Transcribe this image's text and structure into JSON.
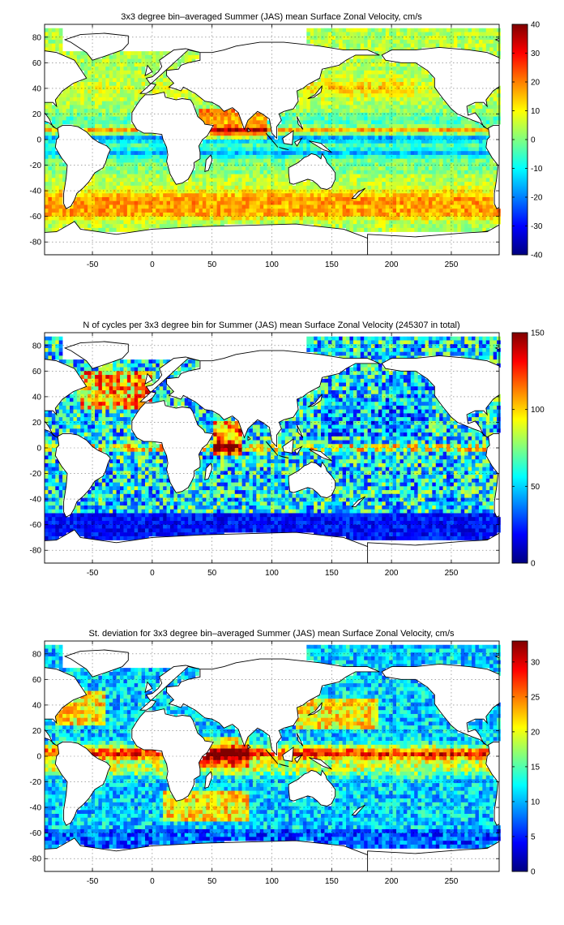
{
  "chart_data": [
    {
      "type": "heatmap",
      "title": "3x3 degree bin–averaged Summer (JAS) mean Surface Zonal Velocity, cm/s",
      "xlim": [
        -90,
        290
      ],
      "ylim": [
        -90,
        90
      ],
      "x_ticks": [
        "-50",
        "0",
        "50",
        "100",
        "150",
        "200",
        "250"
      ],
      "y_ticks": [
        "80",
        "60",
        "40",
        "20",
        "0",
        "-20",
        "-40",
        "-60",
        "-80"
      ],
      "colorbar": {
        "min": -40,
        "max": 40,
        "ticks": [
          "40",
          "30",
          "20",
          "10",
          "0",
          "-10",
          "-20",
          "-30",
          "-40"
        ]
      },
      "colormap": "jet",
      "grid": true
    },
    {
      "type": "heatmap",
      "title": "N of cycles per 3x3 degree bin for Summer (JAS) mean Surface Zonal Velocity (245307 in total)",
      "xlim": [
        -90,
        290
      ],
      "ylim": [
        -90,
        90
      ],
      "x_ticks": [
        "-50",
        "0",
        "50",
        "100",
        "150",
        "200",
        "250"
      ],
      "y_ticks": [
        "80",
        "60",
        "40",
        "20",
        "0",
        "-20",
        "-40",
        "-60",
        "-80"
      ],
      "colorbar": {
        "min": 0,
        "max": 150,
        "ticks": [
          "150",
          "100",
          "50",
          "0"
        ]
      },
      "colormap": "jet",
      "grid": true
    },
    {
      "type": "heatmap",
      "title": "St. deviation for 3x3 degree bin–averaged Summer (JAS) mean Surface Zonal Velocity, cm/s",
      "xlim": [
        -90,
        290
      ],
      "ylim": [
        -90,
        90
      ],
      "x_ticks": [
        "-50",
        "0",
        "50",
        "100",
        "150",
        "200",
        "250"
      ],
      "y_ticks": [
        "80",
        "60",
        "40",
        "20",
        "0",
        "-20",
        "-40",
        "-60",
        "-80"
      ],
      "colorbar": {
        "min": 0,
        "max": 33,
        "ticks": [
          "30",
          "25",
          "20",
          "15",
          "10",
          "5",
          "0"
        ]
      },
      "colormap": "jet",
      "grid": true
    }
  ]
}
